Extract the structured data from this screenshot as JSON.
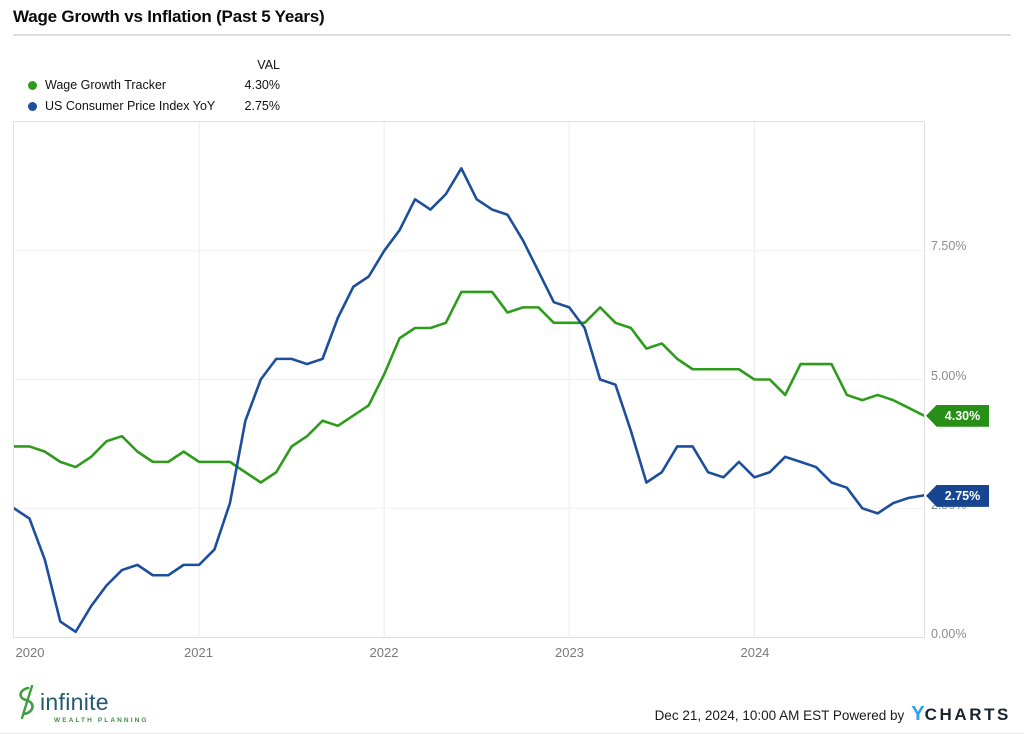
{
  "title": "Wage Growth vs Inflation (Past 5 Years)",
  "legend": {
    "val_header": "VAL",
    "series": [
      {
        "label": "Wage Growth Tracker",
        "value": "4.30%"
      },
      {
        "label": "US Consumer Price Index YoY",
        "value": "2.75%"
      }
    ]
  },
  "chart_data": {
    "type": "line",
    "title": "Wage Growth vs Inflation (Past 5 Years)",
    "x_start": "2020-01",
    "x_end": "2024-12",
    "x_frequency": "monthly",
    "ylim": [
      0,
      10
    ],
    "grid": true,
    "legend_position": "top-left",
    "y_axis": {
      "side": "right",
      "ticks": [
        {
          "label": "7.50%",
          "value": 7.5
        },
        {
          "label": "5.00%",
          "value": 5.0
        },
        {
          "label": "2.50%",
          "value": 2.5
        },
        {
          "label": "0.00%",
          "value": 0.0
        }
      ]
    },
    "x_axis": {
      "ticks": [
        {
          "label": "2020",
          "month_index": 0
        },
        {
          "label": "2021",
          "month_index": 12
        },
        {
          "label": "2022",
          "month_index": 24
        },
        {
          "label": "2023",
          "month_index": 36
        },
        {
          "label": "2024",
          "month_index": 48
        }
      ]
    },
    "series": [
      {
        "name": "Wage Growth Tracker",
        "color": "#2f9b1c",
        "end_label": "4.30%",
        "end_value": 4.3,
        "values": [
          3.7,
          3.7,
          3.6,
          3.4,
          3.3,
          3.5,
          3.8,
          3.9,
          3.6,
          3.4,
          3.4,
          3.6,
          3.4,
          3.4,
          3.4,
          3.2,
          3.0,
          3.2,
          3.7,
          3.9,
          4.2,
          4.1,
          4.3,
          4.5,
          5.1,
          5.8,
          6.0,
          6.0,
          6.1,
          6.7,
          6.7,
          6.7,
          6.3,
          6.4,
          6.4,
          6.1,
          6.1,
          6.1,
          6.4,
          6.1,
          6.0,
          5.6,
          5.7,
          5.4,
          5.2,
          5.2,
          5.2,
          5.2,
          5.0,
          5.0,
          4.7,
          5.3,
          5.3,
          5.3,
          4.7,
          4.6,
          4.7,
          4.6,
          4.45,
          4.3
        ]
      },
      {
        "name": "US Consumer Price Index YoY",
        "color": "#1d4e9b",
        "end_label": "2.75%",
        "end_value": 2.75,
        "values": [
          2.5,
          2.3,
          1.5,
          0.3,
          0.1,
          0.6,
          1.0,
          1.3,
          1.4,
          1.2,
          1.2,
          1.4,
          1.4,
          1.7,
          2.6,
          4.2,
          5.0,
          5.4,
          5.4,
          5.3,
          5.4,
          6.2,
          6.8,
          7.0,
          7.5,
          7.9,
          8.5,
          8.3,
          8.6,
          9.1,
          8.5,
          8.3,
          8.2,
          7.7,
          7.1,
          6.5,
          6.4,
          6.0,
          5.0,
          4.9,
          4.0,
          3.0,
          3.2,
          3.7,
          3.7,
          3.2,
          3.1,
          3.4,
          3.1,
          3.2,
          3.5,
          3.4,
          3.3,
          3.0,
          2.9,
          2.5,
          2.4,
          2.6,
          2.7,
          2.75
        ]
      }
    ]
  },
  "footer": {
    "logo_text": "infinite",
    "logo_subtext": "WEALTH PLANNING",
    "attribution": "Dec 21, 2024, 10:00 AM EST Powered by",
    "ycharts_y": "Y",
    "ycharts_rest": "CHARTS"
  }
}
